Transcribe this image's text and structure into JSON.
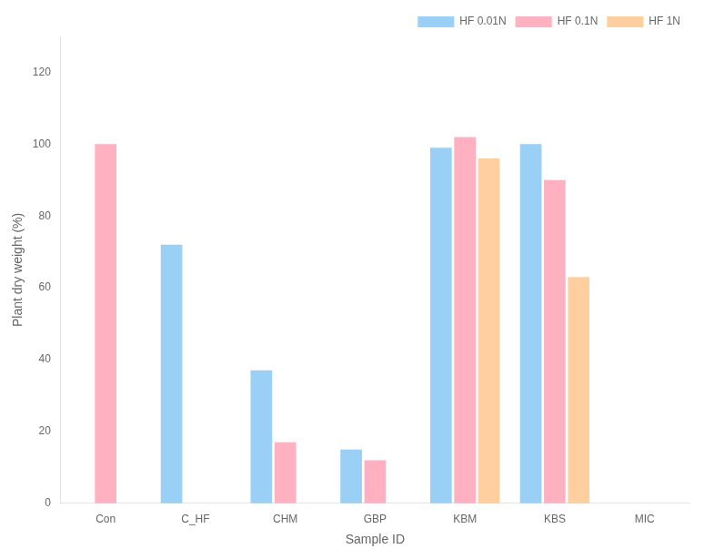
{
  "chart_data": {
    "type": "bar",
    "categories": [
      "Con",
      "C_HF",
      "CHM",
      "GBP",
      "KBM",
      "KBS",
      "MIC"
    ],
    "series": [
      {
        "name": "HF 0.01N",
        "values": [
          0,
          72,
          37,
          15,
          99,
          100,
          0
        ]
      },
      {
        "name": "HF 0.1N",
        "values": [
          100,
          0,
          17,
          12,
          102,
          90,
          0
        ]
      },
      {
        "name": "HF 1N",
        "values": [
          0,
          0,
          0,
          0,
          96,
          63,
          0
        ]
      }
    ],
    "xlabel": "Sample ID",
    "ylabel": "Plant dry weight (%)",
    "ylim": [
      0,
      130
    ],
    "yticks": [
      0,
      20,
      40,
      60,
      80,
      100,
      120
    ],
    "grid": false,
    "legend": "upper right"
  }
}
